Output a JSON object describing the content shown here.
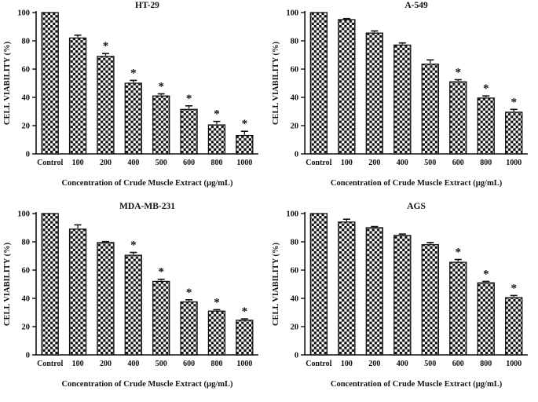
{
  "figure": {
    "name": "cell-viability-dose-response-figure",
    "background": "#ffffff",
    "ink_color": "#111111",
    "shared_xlabel": "Concentration of Crude Muscle Extract (µg/mL)",
    "shared_ylabel": "CELL VIABILITY (%)",
    "significance_marker": "*"
  },
  "chart_data": [
    {
      "type": "bar",
      "title": "HT-29",
      "categories": [
        "Control",
        "100",
        "200",
        "400",
        "500",
        "600",
        "800",
        "1000"
      ],
      "values": [
        100,
        82,
        69,
        50,
        41,
        31.5,
        20.5,
        13
      ],
      "errors": [
        0,
        2,
        2,
        2,
        1.5,
        2.5,
        2.5,
        3
      ],
      "significant": [
        false,
        false,
        true,
        true,
        true,
        true,
        true,
        true
      ],
      "xlabel": "Concentration of Crude Muscle Extract (µg/mL)",
      "ylabel": "CELL VIABILITY (%)",
      "ylim": [
        0,
        100
      ],
      "yticks": [
        0,
        20,
        40,
        60,
        80,
        100
      ],
      "bar_fill": "black-white-checkerboard",
      "legend": "none",
      "grid": "off"
    },
    {
      "type": "bar",
      "title": "A-549",
      "categories": [
        "Control",
        "100",
        "200",
        "400",
        "500",
        "600",
        "800",
        "1000"
      ],
      "values": [
        100,
        95,
        85.5,
        77,
        63.5,
        51,
        39.5,
        29.5
      ],
      "errors": [
        0,
        0.7,
        1.5,
        1.5,
        3,
        1.5,
        1.5,
        2
      ],
      "significant": [
        false,
        false,
        false,
        false,
        false,
        true,
        true,
        true
      ],
      "xlabel": "Concentration of Crude Muscle Extract (µg/mL)",
      "ylabel": "CELL VIABILITY (%)",
      "ylim": [
        0,
        100
      ],
      "yticks": [
        0,
        20,
        40,
        60,
        80,
        100
      ],
      "bar_fill": "black-white-checkerboard",
      "legend": "none",
      "grid": "off"
    },
    {
      "type": "bar",
      "title": "MDA-MB-231",
      "categories": [
        "Control",
        "100",
        "200",
        "400",
        "500",
        "600",
        "800",
        "1000"
      ],
      "values": [
        100,
        89,
        79.5,
        70.5,
        52,
        37.5,
        31,
        24.5
      ],
      "errors": [
        0,
        3,
        0.7,
        2,
        1.5,
        1.5,
        1,
        1
      ],
      "significant": [
        false,
        false,
        false,
        true,
        true,
        true,
        true,
        true
      ],
      "xlabel": "Concentration of Crude Muscle Extract (µg/mL)",
      "ylabel": "CELL VIABILITY (%)",
      "ylim": [
        0,
        100
      ],
      "yticks": [
        0,
        20,
        40,
        60,
        80,
        100
      ],
      "bar_fill": "black-white-checkerboard",
      "legend": "none",
      "grid": "off"
    },
    {
      "type": "bar",
      "title": "AGS",
      "categories": [
        "Control",
        "100",
        "200",
        "400",
        "500",
        "600",
        "800",
        "1000"
      ],
      "values": [
        100,
        94,
        90,
        84.5,
        78,
        65.5,
        51,
        40.5
      ],
      "errors": [
        0,
        2,
        0.8,
        1,
        1.5,
        2,
        1,
        1.5
      ],
      "significant": [
        false,
        false,
        false,
        false,
        false,
        true,
        true,
        true
      ],
      "xlabel": "Concentration of Crude Muscle Extract (µg/mL)",
      "ylabel": "CELL VIABILITY (%)",
      "ylim": [
        0,
        100
      ],
      "yticks": [
        0,
        20,
        40,
        60,
        80,
        100
      ],
      "bar_fill": "black-white-checkerboard",
      "legend": "none",
      "grid": "off"
    }
  ]
}
